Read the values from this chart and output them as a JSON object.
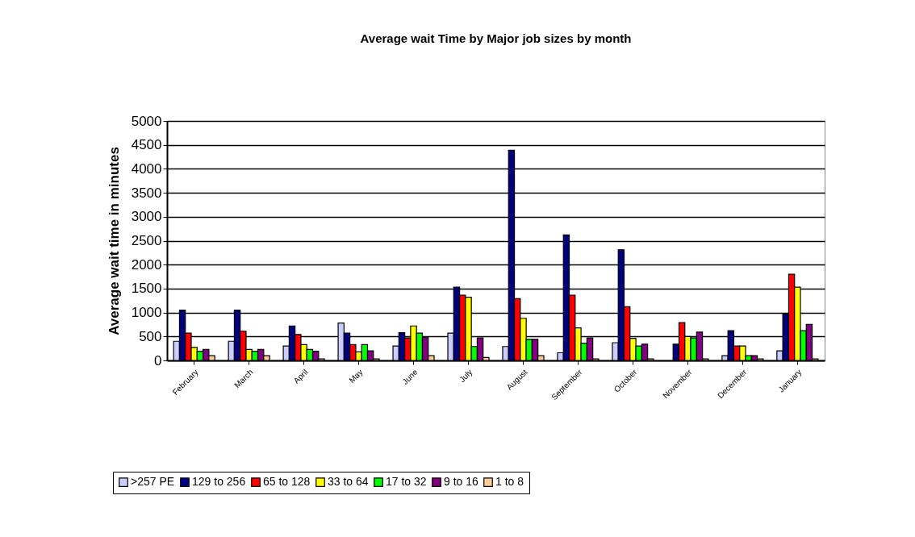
{
  "chart_data": {
    "type": "bar",
    "title": "Average wait Time by Major job sizes by month",
    "ylabel": "Average wait time in minutes",
    "categories": [
      "February",
      "March",
      "April",
      "May",
      "June",
      "July",
      "August",
      "September",
      "October",
      "November",
      "December",
      "January"
    ],
    "series": [
      {
        "name": ">257 PE",
        "color": "#ccccff",
        "values": [
          400,
          400,
          300,
          780,
          300,
          570,
          290,
          160,
          370,
          null,
          100,
          200
        ]
      },
      {
        "name": "129 to 256",
        "color": "#000080",
        "values": [
          1050,
          1050,
          720,
          570,
          580,
          1530,
          4390,
          2620,
          2310,
          340,
          620,
          970
        ]
      },
      {
        "name": "65 to 128",
        "color": "#ff0000",
        "values": [
          570,
          610,
          540,
          330,
          470,
          1360,
          1290,
          1360,
          1120,
          790,
          300,
          1800
        ]
      },
      {
        "name": "33 to 64",
        "color": "#ffff00",
        "values": [
          270,
          230,
          330,
          180,
          720,
          1320,
          880,
          680,
          460,
          500,
          300,
          1530
        ]
      },
      {
        "name": "17 to 32",
        "color": "#00ff00",
        "values": [
          190,
          190,
          230,
          330,
          570,
          290,
          440,
          360,
          300,
          470,
          100,
          620
        ]
      },
      {
        "name": "9 to 16",
        "color": "#800080",
        "values": [
          230,
          230,
          190,
          200,
          480,
          470,
          440,
          470,
          340,
          590,
          100,
          750
        ]
      },
      {
        "name": "1 to 8",
        "color": "#ffcc99",
        "values": [
          100,
          100,
          30,
          30,
          100,
          60,
          100,
          30,
          30,
          30,
          30,
          30
        ]
      }
    ],
    "ylim": [
      0,
      5000
    ],
    "yticks": [
      0,
      500,
      1000,
      1500,
      2000,
      2500,
      3000,
      3500,
      4000,
      4500,
      5000
    ],
    "grid": "y",
    "legend": "bottom left"
  }
}
